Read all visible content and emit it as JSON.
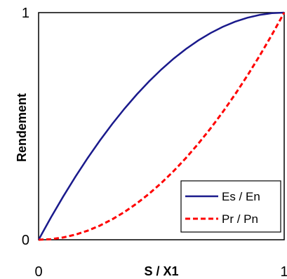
{
  "chart_data": {
    "type": "line",
    "title": "",
    "xlabel": "S / X1",
    "ylabel": "Rendement",
    "xlim": [
      0,
      1
    ],
    "ylim": [
      0,
      1
    ],
    "x_ticks": [
      "0",
      "1"
    ],
    "y_ticks": [
      "0",
      "1"
    ],
    "grid": false,
    "legend_position": "bottom-right",
    "series": [
      {
        "name": "Es / En",
        "color": "#1a1a8c",
        "line_style": "solid",
        "x": [
          0,
          0.05,
          0.1,
          0.15,
          0.2,
          0.25,
          0.3,
          0.35,
          0.4,
          0.45,
          0.5,
          0.55,
          0.6,
          0.65,
          0.7,
          0.75,
          0.8,
          0.85,
          0.9,
          0.95,
          1
        ],
        "y": [
          0,
          0.0975,
          0.19,
          0.2775,
          0.36,
          0.4375,
          0.51,
          0.5775,
          0.64,
          0.6975,
          0.75,
          0.7975,
          0.84,
          0.8775,
          0.91,
          0.9375,
          0.96,
          0.9775,
          0.99,
          0.9975,
          1
        ]
      },
      {
        "name": "Pr / Pn",
        "color": "#ff0000",
        "line_style": "dashed",
        "x": [
          0,
          0.05,
          0.1,
          0.15,
          0.2,
          0.25,
          0.3,
          0.35,
          0.4,
          0.45,
          0.5,
          0.55,
          0.6,
          0.65,
          0.7,
          0.75,
          0.8,
          0.85,
          0.9,
          0.95,
          1
        ],
        "y": [
          0,
          0.0025,
          0.01,
          0.0225,
          0.04,
          0.0625,
          0.09,
          0.1225,
          0.16,
          0.2025,
          0.25,
          0.3025,
          0.36,
          0.4225,
          0.49,
          0.5625,
          0.64,
          0.7225,
          0.81,
          0.9025,
          1
        ]
      }
    ]
  }
}
